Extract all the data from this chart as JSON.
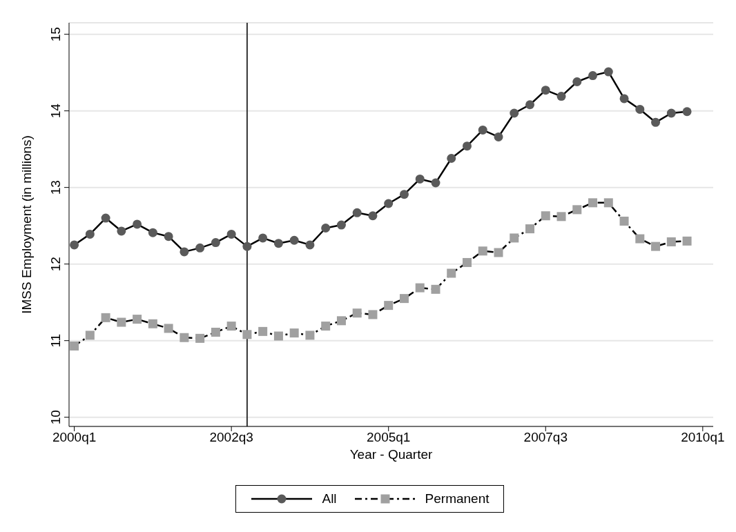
{
  "chart_data": {
    "type": "line",
    "xlabel": "Year - Quarter",
    "ylabel": "IMSS Employment (in millions)",
    "x": [
      "2000-01",
      "2000-04",
      "2000-07",
      "2000-10",
      "2001-01",
      "2001-04",
      "2001-07",
      "2001-10",
      "2002-01",
      "2002-04",
      "2002-07",
      "2002-10",
      "2003-01",
      "2003-04",
      "2003-07",
      "2003-10",
      "2004-01",
      "2004-04",
      "2004-07",
      "2004-10",
      "2005-01",
      "2005-04",
      "2005-07",
      "2005-10",
      "2006-01",
      "2006-04",
      "2006-07",
      "2006-10",
      "2007-01",
      "2007-04",
      "2007-07",
      "2007-10",
      "2008-01",
      "2008-04",
      "2008-07",
      "2008-10",
      "2009-01",
      "2009-04",
      "2009-07",
      "2009-10"
    ],
    "series": [
      {
        "name": "All",
        "color": "#5a5a5a",
        "marker": "circle",
        "line_style": "solid",
        "values": [
          12.25,
          12.39,
          12.6,
          12.43,
          12.52,
          12.41,
          12.36,
          12.16,
          12.21,
          12.28,
          12.39,
          12.23,
          12.34,
          12.27,
          12.31,
          12.25,
          12.47,
          12.51,
          12.67,
          12.63,
          12.79,
          12.91,
          13.11,
          13.06,
          13.38,
          13.54,
          13.75,
          13.66,
          13.97,
          14.08,
          14.27,
          14.19,
          14.38,
          14.46,
          14.51,
          14.16,
          14.02,
          13.85,
          13.97,
          13.99
        ]
      },
      {
        "name": "Permanent",
        "color": "#a0a0a0",
        "marker": "square",
        "line_style": "dashed",
        "values": [
          10.93,
          11.07,
          11.3,
          11.24,
          11.28,
          11.22,
          11.16,
          11.04,
          11.03,
          11.11,
          11.19,
          11.08,
          11.12,
          11.06,
          11.1,
          11.07,
          11.19,
          11.26,
          11.36,
          11.34,
          11.46,
          11.55,
          11.69,
          11.67,
          11.88,
          12.02,
          12.17,
          12.15,
          12.34,
          12.46,
          12.63,
          12.62,
          12.71,
          12.8,
          12.8,
          12.56,
          12.33,
          12.23,
          12.29,
          12.3
        ]
      }
    ],
    "xlim": [
      "1999-12",
      "2010-03"
    ],
    "xticks": [
      {
        "value": "2000-01",
        "label": "2000q1"
      },
      {
        "value": "2002-07",
        "label": "2002q3"
      },
      {
        "value": "2005-01",
        "label": "2005q1"
      },
      {
        "value": "2007-07",
        "label": "2007q3"
      },
      {
        "value": "2010-01",
        "label": "2010q1"
      }
    ],
    "ylim": [
      9.88,
      15.15
    ],
    "yticks": [
      10,
      11,
      12,
      13,
      14,
      15
    ],
    "grid": "y",
    "legend": "bottom",
    "ref_lines": [
      {
        "axis": "x",
        "value": "2002-10",
        "color": "#333333"
      }
    ]
  }
}
